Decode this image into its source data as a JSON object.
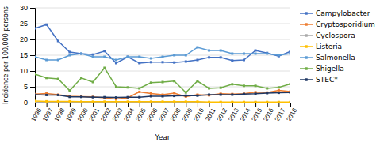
{
  "chart_data": {
    "type": "line",
    "x_label": "Year",
    "y_label": "Incidence per 100,000 persons",
    "x": [
      1996,
      1997,
      1998,
      1999,
      2000,
      2001,
      2002,
      2003,
      2004,
      2005,
      2006,
      2007,
      2008,
      2009,
      2010,
      2011,
      2012,
      2013,
      2014,
      2015,
      2016,
      2017,
      2018
    ],
    "series": [
      {
        "name": "Campylobacter",
        "color": "#4472C4",
        "values": [
          23.5,
          24.7,
          19.5,
          16.0,
          15.5,
          15.2,
          16.3,
          12.5,
          14.5,
          12.5,
          12.8,
          12.8,
          12.7,
          13.0,
          13.5,
          14.3,
          14.3,
          13.3,
          13.5,
          16.5,
          15.7,
          14.7,
          16.2
        ]
      },
      {
        "name": "Cryptosporidium",
        "color": "#ED7D31",
        "values": [
          2.7,
          2.9,
          2.5,
          2.0,
          1.9,
          1.8,
          1.5,
          1.1,
          1.5,
          3.4,
          2.9,
          2.5,
          3.0,
          1.9,
          2.5,
          2.3,
          2.8,
          2.7,
          2.8,
          3.3,
          3.2,
          3.9,
          3.5
        ]
      },
      {
        "name": "Cyclospora",
        "color": "#A9A9A9",
        "values": [
          0.05,
          0.05,
          0.05,
          0.05,
          0.05,
          0.05,
          0.05,
          0.05,
          0.05,
          0.05,
          0.05,
          0.05,
          0.05,
          0.05,
          0.05,
          0.05,
          0.05,
          0.05,
          0.05,
          0.05,
          0.05,
          0.05,
          0.05
        ]
      },
      {
        "name": "Listeria",
        "color": "#FFC000",
        "values": [
          0.5,
          0.4,
          0.4,
          0.4,
          0.3,
          0.3,
          0.3,
          0.3,
          0.3,
          0.3,
          0.3,
          0.3,
          0.3,
          0.3,
          0.3,
          0.2,
          0.2,
          0.2,
          0.2,
          0.2,
          0.2,
          0.2,
          0.2
        ]
      },
      {
        "name": "Salmonella",
        "color": "#5B9BD5",
        "values": [
          14.5,
          13.5,
          13.5,
          15.0,
          15.5,
          14.5,
          14.5,
          13.5,
          14.5,
          14.5,
          14.0,
          14.5,
          15.0,
          15.0,
          17.5,
          16.5,
          16.5,
          15.5,
          15.5,
          15.5,
          15.5,
          15.0,
          15.5
        ]
      },
      {
        "name": "Shigella",
        "color": "#70AD47",
        "values": [
          9.0,
          7.8,
          7.5,
          3.8,
          7.8,
          6.5,
          11.0,
          5.0,
          4.8,
          4.5,
          6.3,
          6.5,
          6.8,
          3.2,
          6.8,
          4.5,
          4.7,
          5.8,
          5.3,
          5.3,
          4.5,
          4.8,
          5.9
        ]
      },
      {
        "name": "STEC*",
        "color": "#1F3864",
        "values": [
          2.5,
          2.4,
          2.4,
          1.8,
          1.8,
          1.7,
          1.7,
          1.6,
          1.7,
          1.7,
          2.0,
          2.0,
          2.1,
          2.2,
          2.2,
          2.5,
          2.5,
          2.5,
          2.7,
          2.8,
          3.0,
          3.1,
          3.2
        ]
      }
    ],
    "xlim": [
      1996,
      2018
    ],
    "xticks": [
      1996,
      1997,
      1998,
      1999,
      2000,
      2001,
      2002,
      2003,
      2004,
      2005,
      2006,
      2007,
      2008,
      2009,
      2010,
      2011,
      2012,
      2013,
      2014,
      2015,
      2016,
      2017,
      2018
    ],
    "ylim": [
      0,
      30
    ],
    "yticks": [
      0,
      5,
      10,
      15,
      20,
      25,
      30
    ],
    "grid": true,
    "legend": "right",
    "marker": "square",
    "line_style": "solid"
  }
}
